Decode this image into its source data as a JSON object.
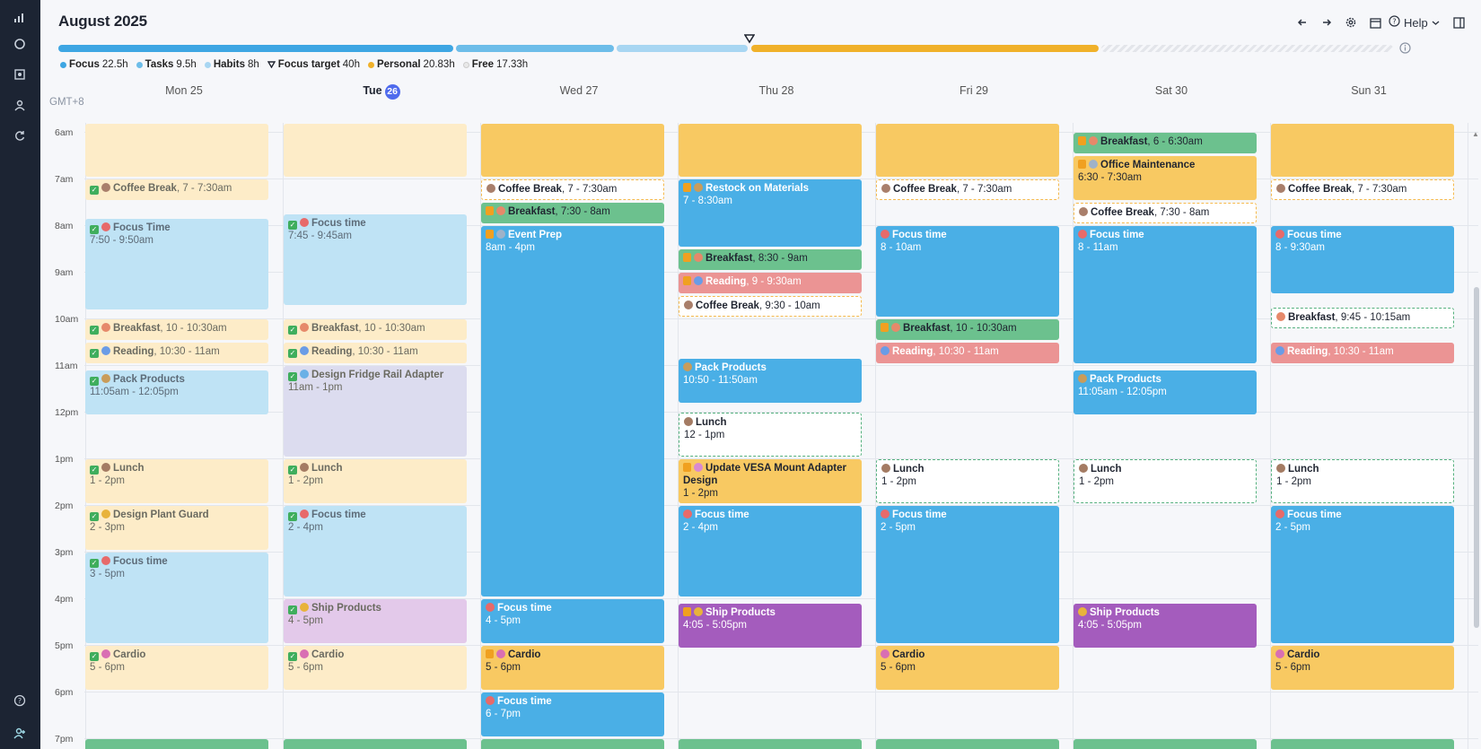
{
  "header": {
    "month": "August 2025",
    "help_label": "Help",
    "legend": [
      {
        "label": "Focus",
        "value": "22.5h",
        "color": "#3ea6e3"
      },
      {
        "label": "Tasks",
        "value": "9.5h",
        "color": "#6dbde9"
      },
      {
        "label": "Habits",
        "value": "8h",
        "color": "#a8d6f2"
      },
      {
        "label": "Focus target",
        "value": "40h",
        "color": "#1f2430"
      },
      {
        "label": "Personal",
        "value": "20.83h",
        "color": "#f0b12a"
      },
      {
        "label": "Free",
        "value": "17.33h",
        "color": "#e8e8e8"
      }
    ],
    "progress": {
      "focus_h": 22.5,
      "tasks_h": 9.5,
      "habits_h": 8,
      "personal_h": 20.83,
      "free_h": 17.33,
      "focus_target_h": 40
    }
  },
  "timezone": "GMT+8",
  "days": [
    {
      "label": "Mon 25"
    },
    {
      "label": "Tue",
      "badge": "26",
      "today": true
    },
    {
      "label": "Wed 27"
    },
    {
      "label": "Thu 28"
    },
    {
      "label": "Fri 29"
    },
    {
      "label": "Sat 30"
    },
    {
      "label": "Sun 31"
    }
  ],
  "hours": [
    "6am",
    "7am",
    "8am",
    "9am",
    "10am",
    "11am",
    "12pm",
    "1pm",
    "2pm",
    "3pm",
    "4pm",
    "5pm",
    "6pm",
    "7pm"
  ],
  "events": [
    {
      "day": 0,
      "start": 5.8,
      "end": 7.0,
      "style": "c-lyel",
      "title": "",
      "time": ""
    },
    {
      "day": 0,
      "start": 7.0,
      "end": 7.5,
      "style": "c-lyel",
      "title": "Coffee Break",
      "time": "7 - 7:30am",
      "check": true,
      "inline": true,
      "emoji": "#a97f6b"
    },
    {
      "day": 0,
      "start": 7.83,
      "end": 9.83,
      "style": "c-lblue",
      "title": "Focus Time",
      "time": "7:50 - 9:50am",
      "check": true,
      "emoji": "#e76a6a"
    },
    {
      "day": 0,
      "start": 10.0,
      "end": 10.5,
      "style": "c-lyel",
      "title": "Breakfast",
      "time": "10 - 10:30am",
      "check": true,
      "inline": true,
      "emoji": "#e6896a"
    },
    {
      "day": 0,
      "start": 10.5,
      "end": 11.0,
      "style": "c-lyel",
      "title": "Reading",
      "time": "10:30 - 11am",
      "check": true,
      "inline": true,
      "emoji": "#6a9ce6"
    },
    {
      "day": 0,
      "start": 11.08,
      "end": 12.08,
      "style": "c-lblue",
      "title": "Pack Products",
      "time": "11:05am - 12:05pm",
      "check": true,
      "emoji": "#c99c5a"
    },
    {
      "day": 0,
      "start": 13.0,
      "end": 14.0,
      "style": "c-lyel",
      "title": "Lunch",
      "time": "1 - 2pm",
      "check": true,
      "emoji": "#a47b63"
    },
    {
      "day": 0,
      "start": 14.0,
      "end": 15.0,
      "style": "c-lyel",
      "title": "Design Plant Guard",
      "time": "2 - 3pm",
      "check": true,
      "emoji": "#e8b33b"
    },
    {
      "day": 0,
      "start": 15.0,
      "end": 17.0,
      "style": "c-lblue",
      "title": "Focus time",
      "time": "3 - 5pm",
      "check": true,
      "emoji": "#e76a6a"
    },
    {
      "day": 0,
      "start": 17.0,
      "end": 18.0,
      "style": "c-lyel",
      "title": "Cardio",
      "time": "5 - 6pm",
      "check": true,
      "emoji": "#d96fb3"
    },
    {
      "day": 0,
      "start": 19.0,
      "end": 19.6,
      "style": "c-green",
      "title": "",
      "time": ""
    },
    {
      "day": 1,
      "start": 5.8,
      "end": 7.0,
      "style": "c-lyel",
      "title": "",
      "time": ""
    },
    {
      "day": 1,
      "start": 7.75,
      "end": 9.75,
      "style": "c-lblue",
      "title": "Focus time",
      "time": "7:45 - 9:45am",
      "check": true,
      "emoji": "#e76a6a"
    },
    {
      "day": 1,
      "start": 10.0,
      "end": 10.5,
      "style": "c-lyel",
      "title": "Breakfast",
      "time": "10 - 10:30am",
      "check": true,
      "inline": true,
      "emoji": "#e6896a"
    },
    {
      "day": 1,
      "start": 10.5,
      "end": 11.0,
      "style": "c-lyel",
      "title": "Reading",
      "time": "10:30 - 11am",
      "check": true,
      "inline": true,
      "emoji": "#6a9ce6"
    },
    {
      "day": 1,
      "start": 11.0,
      "end": 13.0,
      "style": "c-lgray",
      "title": "Design Fridge Rail Adapter",
      "time": "11am - 1pm",
      "check": true,
      "emoji": "#6ab0e6"
    },
    {
      "day": 1,
      "start": 13.0,
      "end": 14.0,
      "style": "c-lyel",
      "title": "Lunch",
      "time": "1 - 2pm",
      "check": true,
      "emoji": "#a47b63"
    },
    {
      "day": 1,
      "start": 14.0,
      "end": 16.0,
      "style": "c-lblue",
      "title": "Focus time",
      "time": "2 - 4pm",
      "check": true,
      "emoji": "#e76a6a"
    },
    {
      "day": 1,
      "start": 16.0,
      "end": 17.0,
      "style": "c-lpur",
      "title": "Ship Products",
      "time": "4 - 5pm",
      "check": true,
      "emoji": "#e8b33b"
    },
    {
      "day": 1,
      "start": 17.0,
      "end": 18.0,
      "style": "c-lyel",
      "title": "Cardio",
      "time": "5 - 6pm",
      "check": true,
      "emoji": "#d96fb3"
    },
    {
      "day": 1,
      "start": 19.0,
      "end": 19.6,
      "style": "c-green",
      "title": "",
      "time": ""
    },
    {
      "day": 2,
      "start": 5.8,
      "end": 7.0,
      "style": "c-yellow",
      "title": "",
      "time": ""
    },
    {
      "day": 2,
      "start": 7.0,
      "end": 7.5,
      "style": "c-dash-y",
      "title": "Coffee Break",
      "time": "7 - 7:30am",
      "inline": true,
      "emoji": "#a97f6b"
    },
    {
      "day": 2,
      "start": 7.5,
      "end": 8.0,
      "style": "c-green",
      "title": "Breakfast",
      "time": "7:30 - 8am",
      "lock": true,
      "inline": true,
      "emoji": "#e6896a"
    },
    {
      "day": 2,
      "start": 8.0,
      "end": 16.0,
      "style": "c-blue",
      "title": "Event Prep",
      "time": "8am - 4pm",
      "lock": true,
      "emoji": "#9fb2c8"
    },
    {
      "day": 2,
      "start": 16.0,
      "end": 17.0,
      "style": "c-blue",
      "title": "Focus time",
      "time": "4 - 5pm",
      "emoji": "#e76a6a"
    },
    {
      "day": 2,
      "start": 17.0,
      "end": 18.0,
      "style": "c-yellow",
      "title": "Cardio",
      "time": "5 - 6pm",
      "lock": true,
      "emoji": "#d96fb3"
    },
    {
      "day": 2,
      "start": 18.0,
      "end": 19.0,
      "style": "c-blue",
      "title": "Focus time",
      "time": "6 - 7pm",
      "emoji": "#e76a6a"
    },
    {
      "day": 2,
      "start": 19.0,
      "end": 19.6,
      "style": "c-green",
      "title": "",
      "time": ""
    },
    {
      "day": 3,
      "start": 5.8,
      "end": 7.0,
      "style": "c-yellow",
      "title": "",
      "time": ""
    },
    {
      "day": 3,
      "start": 7.0,
      "end": 8.5,
      "style": "c-blue",
      "title": "Restock on Materials",
      "time": "7 - 8:30am",
      "lock": true,
      "emoji": "#c99c5a"
    },
    {
      "day": 3,
      "start": 8.5,
      "end": 9.0,
      "style": "c-green",
      "title": "Breakfast",
      "time": "8:30 - 9am",
      "lock": true,
      "inline": true,
      "emoji": "#e6896a"
    },
    {
      "day": 3,
      "start": 9.0,
      "end": 9.5,
      "style": "c-red",
      "title": "Reading",
      "time": "9 - 9:30am",
      "lock": true,
      "inline": true,
      "emoji": "#6a9ce6"
    },
    {
      "day": 3,
      "start": 9.5,
      "end": 10.0,
      "style": "c-dash-y",
      "title": "Coffee Break",
      "time": "9:30 - 10am",
      "inline": true,
      "emoji": "#a97f6b"
    },
    {
      "day": 3,
      "start": 10.83,
      "end": 11.83,
      "style": "c-blue",
      "title": "Pack Products",
      "time": "10:50 - 11:50am",
      "emoji": "#c99c5a"
    },
    {
      "day": 3,
      "start": 12.0,
      "end": 13.0,
      "style": "c-dash-g",
      "title": "Lunch",
      "time": "12 - 1pm",
      "emoji": "#a47b63"
    },
    {
      "day": 3,
      "start": 13.0,
      "end": 14.0,
      "style": "c-yellow",
      "title": "Update VESA Mount Adapter Design",
      "time": "1 - 2pm",
      "lock": true,
      "emoji": "#d98ad0"
    },
    {
      "day": 3,
      "start": 14.0,
      "end": 16.0,
      "style": "c-blue",
      "title": "Focus time",
      "time": "2 - 4pm",
      "emoji": "#e76a6a"
    },
    {
      "day": 3,
      "start": 16.08,
      "end": 17.08,
      "style": "c-purple",
      "title": "Ship Products",
      "time": "4:05 - 5:05pm",
      "lock": true,
      "emoji": "#e8b33b"
    },
    {
      "day": 3,
      "start": 19.0,
      "end": 19.6,
      "style": "c-green",
      "title": "",
      "time": ""
    },
    {
      "day": 4,
      "start": 5.8,
      "end": 7.0,
      "style": "c-yellow",
      "title": "",
      "time": ""
    },
    {
      "day": 4,
      "start": 7.0,
      "end": 7.5,
      "style": "c-dash-y",
      "title": "Coffee Break",
      "time": "7 - 7:30am",
      "inline": true,
      "emoji": "#a97f6b"
    },
    {
      "day": 4,
      "start": 8.0,
      "end": 10.0,
      "style": "c-blue",
      "title": "Focus time",
      "time": "8 - 10am",
      "emoji": "#e76a6a"
    },
    {
      "day": 4,
      "start": 10.0,
      "end": 10.5,
      "style": "c-green",
      "title": "Breakfast",
      "time": "10 - 10:30am",
      "lock": true,
      "inline": true,
      "emoji": "#e6896a"
    },
    {
      "day": 4,
      "start": 10.5,
      "end": 11.0,
      "style": "c-red",
      "title": "Reading",
      "time": "10:30 - 11am",
      "inline": true,
      "emoji": "#6a9ce6"
    },
    {
      "day": 4,
      "start": 13.0,
      "end": 14.0,
      "style": "c-dash-g",
      "title": "Lunch",
      "time": "1 - 2pm",
      "emoji": "#a47b63"
    },
    {
      "day": 4,
      "start": 14.0,
      "end": 17.0,
      "style": "c-blue",
      "title": "Focus time",
      "time": "2 - 5pm",
      "emoji": "#e76a6a"
    },
    {
      "day": 4,
      "start": 17.0,
      "end": 18.0,
      "style": "c-yellow",
      "title": "Cardio",
      "time": "5 - 6pm",
      "emoji": "#d96fb3"
    },
    {
      "day": 4,
      "start": 19.0,
      "end": 19.6,
      "style": "c-green",
      "title": "",
      "time": ""
    },
    {
      "day": 5,
      "start": 6.0,
      "end": 6.5,
      "style": "c-green",
      "title": "Breakfast",
      "time": "6 - 6:30am",
      "lock": true,
      "inline": true,
      "emoji": "#e6896a"
    },
    {
      "day": 5,
      "start": 6.5,
      "end": 7.5,
      "style": "c-yellow",
      "title": "Office Maintenance",
      "time": "6:30 - 7:30am",
      "lock": true,
      "emoji": "#9fb2c8"
    },
    {
      "day": 5,
      "start": 7.5,
      "end": 8.0,
      "style": "c-dash-y",
      "title": "Coffee Break",
      "time": "7:30 - 8am",
      "inline": true,
      "emoji": "#a97f6b"
    },
    {
      "day": 5,
      "start": 8.0,
      "end": 11.0,
      "style": "c-blue",
      "title": "Focus time",
      "time": "8 - 11am",
      "emoji": "#e76a6a"
    },
    {
      "day": 5,
      "start": 11.08,
      "end": 12.08,
      "style": "c-blue",
      "title": "Pack Products",
      "time": "11:05am - 12:05pm",
      "emoji": "#c99c5a"
    },
    {
      "day": 5,
      "start": 13.0,
      "end": 14.0,
      "style": "c-dash-g",
      "title": "Lunch",
      "time": "1 - 2pm",
      "emoji": "#a47b63"
    },
    {
      "day": 5,
      "start": 16.08,
      "end": 17.08,
      "style": "c-purple",
      "title": "Ship Products",
      "time": "4:05 - 5:05pm",
      "emoji": "#e8b33b"
    },
    {
      "day": 5,
      "start": 19.0,
      "end": 19.6,
      "style": "c-green",
      "title": "",
      "time": ""
    },
    {
      "day": 6,
      "start": 5.8,
      "end": 7.0,
      "style": "c-yellow",
      "title": "",
      "time": ""
    },
    {
      "day": 6,
      "start": 7.0,
      "end": 7.5,
      "style": "c-dash-y",
      "title": "Coffee Break",
      "time": "7 - 7:30am",
      "inline": true,
      "emoji": "#a97f6b"
    },
    {
      "day": 6,
      "start": 8.0,
      "end": 9.5,
      "style": "c-blue",
      "title": "Focus time",
      "time": "8 - 9:30am",
      "emoji": "#e76a6a"
    },
    {
      "day": 6,
      "start": 9.75,
      "end": 10.25,
      "style": "c-dash-g",
      "title": "Breakfast",
      "time": "9:45 - 10:15am",
      "inline": true,
      "emoji": "#e6896a"
    },
    {
      "day": 6,
      "start": 10.5,
      "end": 11.0,
      "style": "c-red",
      "title": "Reading",
      "time": "10:30 - 11am",
      "inline": true,
      "emoji": "#6a9ce6"
    },
    {
      "day": 6,
      "start": 13.0,
      "end": 14.0,
      "style": "c-dash-g",
      "title": "Lunch",
      "time": "1 - 2pm",
      "emoji": "#a47b63"
    },
    {
      "day": 6,
      "start": 14.0,
      "end": 17.0,
      "style": "c-blue",
      "title": "Focus time",
      "time": "2 - 5pm",
      "emoji": "#e76a6a"
    },
    {
      "day": 6,
      "start": 17.0,
      "end": 18.0,
      "style": "c-yellow",
      "title": "Cardio",
      "time": "5 - 6pm",
      "emoji": "#d96fb3"
    },
    {
      "day": 6,
      "start": 19.0,
      "end": 19.6,
      "style": "c-green",
      "title": "",
      "time": ""
    }
  ]
}
